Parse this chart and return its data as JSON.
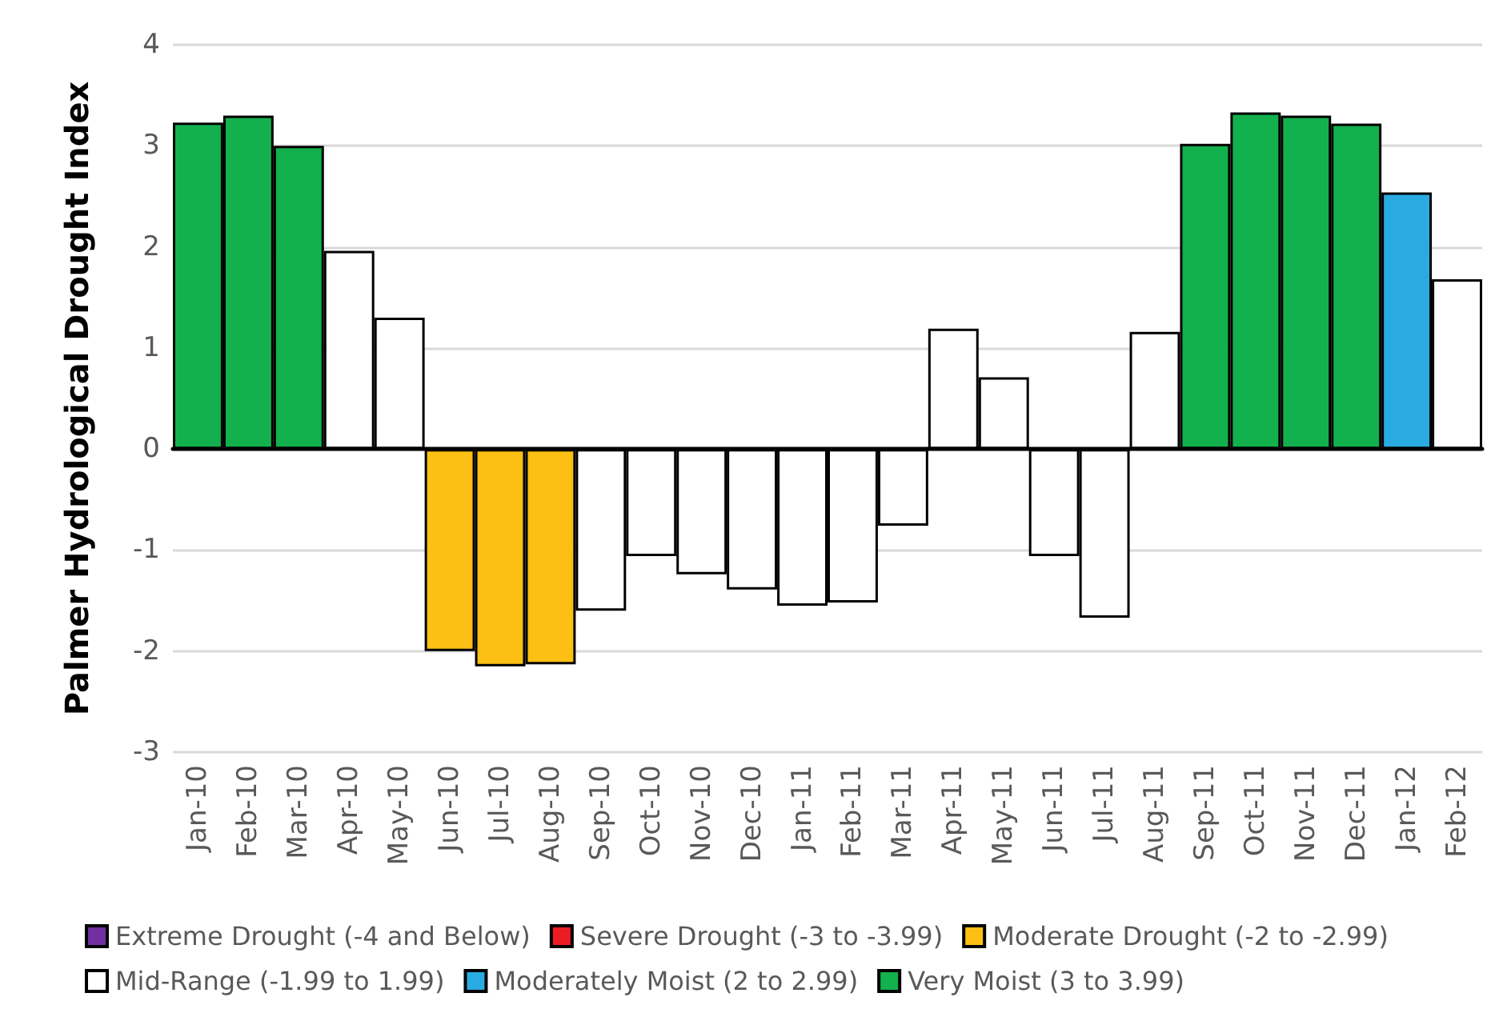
{
  "chart_data": {
    "type": "bar",
    "ylabel": "Palmer Hydrological Drought Index",
    "stacked": true,
    "categories": [
      "Jan-10",
      "Feb-10",
      "Mar-10",
      "Apr-10",
      "May-10",
      "Jun-10",
      "Jul-10",
      "Aug-10",
      "Sep-10",
      "Oct-10",
      "Nov-10",
      "Dec-10",
      "Jan-11",
      "Feb-11",
      "Mar-11",
      "Apr-11",
      "May-11",
      "Jun-11",
      "Jul-11",
      "Aug-11",
      "Sep-11",
      "Oct-11",
      "Nov-11",
      "Dec-11",
      "Jan-12",
      "Feb-12"
    ],
    "series": [
      {
        "name": "Extreme Drought (-4 and Below)",
        "color": "#7030a0",
        "values": [
          null,
          null,
          null,
          null,
          null,
          null,
          null,
          null,
          null,
          null,
          null,
          null,
          null,
          null,
          null,
          null,
          null,
          null,
          null,
          null,
          null,
          null,
          null,
          null,
          null,
          null
        ]
      },
      {
        "name": "Severe Drought (-3 to -3.99)",
        "color": "#ed1c24",
        "values": [
          null,
          null,
          null,
          null,
          null,
          null,
          null,
          null,
          null,
          null,
          null,
          null,
          null,
          null,
          null,
          null,
          null,
          null,
          null,
          null,
          null,
          null,
          null,
          null,
          null,
          null
        ]
      },
      {
        "name": "Moderate Drought (-2 to -2.99)",
        "color": "#fcbf13",
        "values": [
          null,
          null,
          null,
          null,
          null,
          -2.0,
          -2.15,
          -2.13,
          null,
          null,
          null,
          null,
          null,
          null,
          null,
          null,
          null,
          null,
          null,
          null,
          null,
          null,
          null,
          null,
          null,
          null
        ]
      },
      {
        "name": "Mid-Range (-1.99 to 1.99)",
        "color": "#ffffff",
        "values": [
          null,
          null,
          null,
          1.96,
          1.3,
          null,
          null,
          null,
          -1.6,
          -1.06,
          -1.24,
          -1.39,
          -1.55,
          -1.52,
          -0.76,
          1.19,
          0.71,
          -1.06,
          -1.67,
          1.16,
          null,
          null,
          null,
          null,
          null,
          1.68
        ]
      },
      {
        "name": "Moderately Moist (2 to 2.99)",
        "color": "#29abe2",
        "values": [
          null,
          null,
          null,
          null,
          null,
          null,
          null,
          null,
          null,
          null,
          null,
          null,
          null,
          null,
          null,
          null,
          null,
          null,
          null,
          null,
          null,
          null,
          null,
          null,
          2.54,
          null
        ]
      },
      {
        "name": "Very Moist (3 to 3.99)",
        "color": "#13b04e",
        "values": [
          3.23,
          3.3,
          3.0,
          null,
          null,
          null,
          null,
          null,
          null,
          null,
          null,
          null,
          null,
          null,
          null,
          null,
          null,
          null,
          null,
          null,
          3.02,
          3.33,
          3.3,
          3.22,
          null,
          null
        ]
      }
    ],
    "ylim": [
      -3,
      4
    ],
    "yticks": [
      -3,
      -2,
      -1,
      0,
      1,
      2,
      3,
      4
    ],
    "grid": "y",
    "legend": "bottom"
  }
}
